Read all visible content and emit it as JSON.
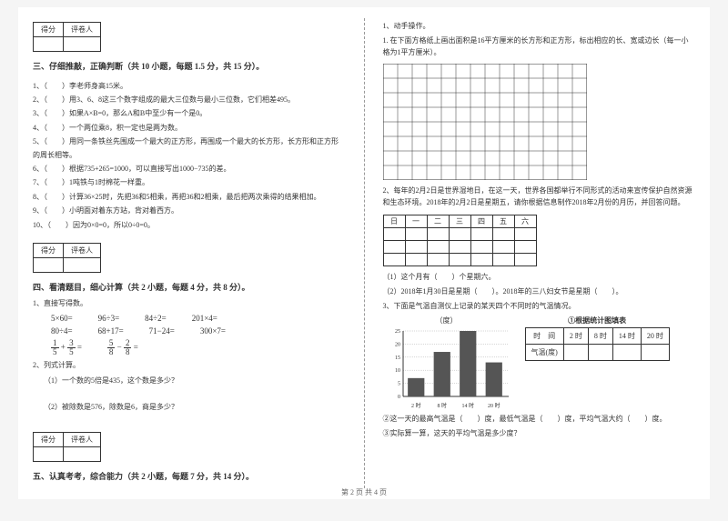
{
  "scorebox": {
    "c1": "得分",
    "c2": "评卷人"
  },
  "sec3": {
    "title": "三、仔细推敲，正确判断（共 10 小题，每题 1.5 分，共 15 分）。",
    "items": [
      "1、（　　）李老师身高15米。",
      "2、（　　）用3、6、8这三个数字组成的最大三位数与最小三位数，它们相差495。",
      "3、（　　）如果A×B=0，那么A和B中至少有一个是0。",
      "4、（　　）一个两位乘8，积一定也是两为数。",
      "5、（　　）用同一条铁丝先围成一个最大的正方形，再围成一个最大的长方形，长方形和正方形的周长相等。",
      "6、（　　）根据735+265=1000，可以直接写出1000−735的差。",
      "7、（　　）1吨铁与1时棉花一样重。",
      "8、（　　）计算36×25时，先把36和5相乘，再把36和2相乘，最后把两次乘得的结果相加。",
      "9、（　　）小明面对着东方站，背对着西方。",
      "10、（　　）因为0×0=0，所以0÷0=0。"
    ]
  },
  "sec4": {
    "title": "四、看清题目，细心计算（共 2 小题，每题 4 分，共 8 分）。",
    "sub1": "1、直接写得数。",
    "row1": [
      "5×60=",
      "96÷3=",
      "84÷2=",
      "201×4="
    ],
    "row2": [
      "80÷4=",
      "68+17=",
      "71−24=",
      "300×7="
    ],
    "sub2": "2、列式计算。",
    "q1": "（1）一个数的5倍是435，这个数是多少？",
    "q2": "（2）被除数是576，除数是6，商是多少？"
  },
  "sec5": {
    "title": "五、认真考考，综合能力（共 2 小题，每题 7 分，共 14 分）。"
  },
  "right": {
    "h1": "1、动手操作。",
    "h1a": "1. 在下面方格纸上画出面积是16平方厘米的长方形和正方形，标出相应的长、宽或边长（每一小格为1平方厘米）。",
    "grid": {
      "cols": 14,
      "rows": 8,
      "cell": 16,
      "stroke": "#333",
      "bg": "#fff"
    },
    "h2": "2、每年的2月2日是世界湿地日，在这一天，世界各国都举行不同形式的活动来宣传保护自然资源和生态环境。2018年的2月2日是星期五，请你根据信息制作2018年2月份的月历，并回答问题。",
    "cal_head": [
      "日",
      "一",
      "二",
      "三",
      "四",
      "五",
      "六"
    ],
    "q21": "（1）这个月有（　　）个星期六。",
    "q22": "（2）2018年1月30日是星期（　　）。2018年的三八妇女节是星期（　　）。",
    "h3": "3、下面是气温自测仪上记录的某天四个不同时的气温情况。",
    "chart": {
      "ylabel": "（度）",
      "yticks": [
        0,
        5,
        10,
        15,
        20,
        25
      ],
      "xticks": [
        "2 时",
        "8 时",
        "14 时",
        "20 时"
      ],
      "bars": [
        7,
        17,
        25,
        13
      ],
      "bar_color": "#555",
      "axis_color": "#333",
      "grid_color": "#999",
      "w": 140,
      "h": 90
    },
    "table_title": "①根据统计图填表",
    "table": {
      "h": [
        "时　间",
        "2 时",
        "8 时",
        "14 时",
        "20 时"
      ],
      "r": "气温(度)"
    },
    "q3a": "②这一天的最高气温是（　　）度，最低气温是（　　）度，平均气温大约（　　）度。",
    "q3b": "③实际算一算，这天的平均气温是多少度？"
  },
  "footer": "第 2 页 共 4 页"
}
